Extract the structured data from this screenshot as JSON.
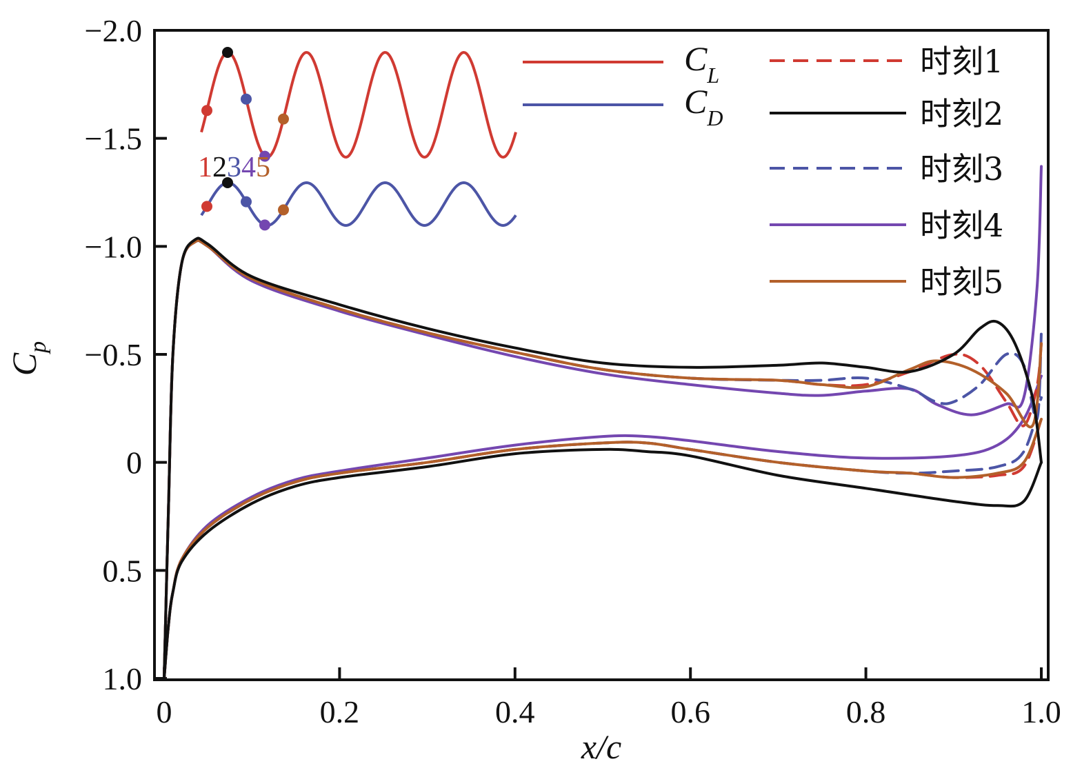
{
  "chart_data": {
    "type": "line",
    "xlabel": "x/c",
    "ylabel": "C_p",
    "ylabel_main": "C",
    "ylabel_sub": "p",
    "xlim": [
      0,
      1.0
    ],
    "ylim": [
      1.0,
      -2.0
    ],
    "y_inverted": true,
    "grid": false,
    "xticks": [
      0,
      0.2,
      0.4,
      0.6,
      0.8,
      1.0
    ],
    "xtick_labels": [
      "0",
      "0.2",
      "0.4",
      "0.6",
      "0.8",
      "1.0"
    ],
    "yticks": [
      -2.0,
      -1.5,
      -1.0,
      -0.5,
      0,
      0.5,
      1.0
    ],
    "ytick_labels": [
      "−2.0",
      "−1.5",
      "−1.0",
      "−0.5",
      "0",
      "0.5",
      "1.0"
    ],
    "legend": [
      {
        "label_main": "C",
        "label_sub": "L",
        "color": "#d03a32",
        "dash": "solid"
      },
      {
        "label_main": "C",
        "label_sub": "D",
        "color": "#4c55a6",
        "dash": "solid"
      },
      {
        "label": "时刻1",
        "color": "#d03a32",
        "dash": "dashed"
      },
      {
        "label": "时刻2",
        "color": "#111111",
        "dash": "solid"
      },
      {
        "label": "时刻3",
        "color": "#4c55a6",
        "dash": "dashed"
      },
      {
        "label": "时刻4",
        "color": "#7447b0",
        "dash": "solid"
      },
      {
        "label": "时刻5",
        "color": "#b3602a",
        "dash": "solid"
      }
    ],
    "legend_position": "top-right",
    "series": [
      {
        "name": "时刻1",
        "color": "#d03a32",
        "dash": "dashed",
        "upper": [
          [
            0.0,
            1.0
          ],
          [
            0.005,
            0.2
          ],
          [
            0.01,
            -0.5
          ],
          [
            0.02,
            -0.92
          ],
          [
            0.035,
            -1.02
          ],
          [
            0.05,
            -1.0
          ],
          [
            0.1,
            -0.85
          ],
          [
            0.2,
            -0.71
          ],
          [
            0.3,
            -0.6
          ],
          [
            0.4,
            -0.51
          ],
          [
            0.5,
            -0.43
          ],
          [
            0.6,
            -0.39
          ],
          [
            0.7,
            -0.38
          ],
          [
            0.75,
            -0.36
          ],
          [
            0.8,
            -0.36
          ],
          [
            0.85,
            -0.42
          ],
          [
            0.9,
            -0.5
          ],
          [
            0.93,
            -0.45
          ],
          [
            0.96,
            -0.28
          ],
          [
            0.98,
            -0.17
          ],
          [
            0.995,
            -0.35
          ],
          [
            1.0,
            -0.55
          ]
        ],
        "lower": [
          [
            0.0,
            1.0
          ],
          [
            0.005,
            0.75
          ],
          [
            0.01,
            0.6
          ],
          [
            0.02,
            0.45
          ],
          [
            0.05,
            0.3
          ],
          [
            0.1,
            0.17
          ],
          [
            0.15,
            0.09
          ],
          [
            0.2,
            0.05
          ],
          [
            0.3,
            0.0
          ],
          [
            0.4,
            -0.06
          ],
          [
            0.5,
            -0.09
          ],
          [
            0.55,
            -0.09
          ],
          [
            0.6,
            -0.06
          ],
          [
            0.7,
            0.0
          ],
          [
            0.8,
            0.04
          ],
          [
            0.85,
            0.05
          ],
          [
            0.9,
            0.07
          ],
          [
            0.95,
            0.06
          ],
          [
            0.98,
            0.02
          ],
          [
            1.0,
            -0.2
          ]
        ]
      },
      {
        "name": "时刻2",
        "color": "#111111",
        "dash": "solid",
        "upper": [
          [
            0.0,
            1.0
          ],
          [
            0.005,
            0.2
          ],
          [
            0.01,
            -0.5
          ],
          [
            0.02,
            -0.92
          ],
          [
            0.035,
            -1.03
          ],
          [
            0.05,
            -1.01
          ],
          [
            0.1,
            -0.86
          ],
          [
            0.2,
            -0.73
          ],
          [
            0.3,
            -0.62
          ],
          [
            0.4,
            -0.53
          ],
          [
            0.5,
            -0.46
          ],
          [
            0.6,
            -0.44
          ],
          [
            0.7,
            -0.45
          ],
          [
            0.75,
            -0.46
          ],
          [
            0.8,
            -0.44
          ],
          [
            0.85,
            -0.42
          ],
          [
            0.9,
            -0.5
          ],
          [
            0.93,
            -0.62
          ],
          [
            0.95,
            -0.65
          ],
          [
            0.97,
            -0.55
          ],
          [
            0.99,
            -0.3
          ],
          [
            1.0,
            0.0
          ]
        ],
        "lower": [
          [
            0.0,
            1.0
          ],
          [
            0.005,
            0.75
          ],
          [
            0.01,
            0.6
          ],
          [
            0.02,
            0.46
          ],
          [
            0.05,
            0.32
          ],
          [
            0.1,
            0.19
          ],
          [
            0.15,
            0.11
          ],
          [
            0.2,
            0.07
          ],
          [
            0.3,
            0.02
          ],
          [
            0.4,
            -0.04
          ],
          [
            0.5,
            -0.06
          ],
          [
            0.55,
            -0.05
          ],
          [
            0.6,
            -0.03
          ],
          [
            0.7,
            0.06
          ],
          [
            0.8,
            0.12
          ],
          [
            0.9,
            0.18
          ],
          [
            0.95,
            0.2
          ],
          [
            0.98,
            0.18
          ],
          [
            1.0,
            0.0
          ]
        ]
      },
      {
        "name": "时刻3",
        "color": "#4c55a6",
        "dash": "dashed",
        "upper": [
          [
            0.0,
            1.0
          ],
          [
            0.005,
            0.2
          ],
          [
            0.01,
            -0.5
          ],
          [
            0.02,
            -0.92
          ],
          [
            0.035,
            -1.02
          ],
          [
            0.05,
            -1.0
          ],
          [
            0.1,
            -0.85
          ],
          [
            0.2,
            -0.71
          ],
          [
            0.3,
            -0.6
          ],
          [
            0.4,
            -0.51
          ],
          [
            0.5,
            -0.43
          ],
          [
            0.6,
            -0.39
          ],
          [
            0.7,
            -0.38
          ],
          [
            0.75,
            -0.38
          ],
          [
            0.8,
            -0.39
          ],
          [
            0.85,
            -0.34
          ],
          [
            0.88,
            -0.28
          ],
          [
            0.9,
            -0.28
          ],
          [
            0.93,
            -0.36
          ],
          [
            0.96,
            -0.5
          ],
          [
            0.98,
            -0.45
          ],
          [
            0.995,
            -0.2
          ],
          [
            1.0,
            -0.6
          ]
        ],
        "lower": [
          [
            0.0,
            1.0
          ],
          [
            0.005,
            0.75
          ],
          [
            0.01,
            0.6
          ],
          [
            0.02,
            0.45
          ],
          [
            0.05,
            0.3
          ],
          [
            0.1,
            0.17
          ],
          [
            0.15,
            0.09
          ],
          [
            0.2,
            0.05
          ],
          [
            0.3,
            0.0
          ],
          [
            0.4,
            -0.06
          ],
          [
            0.5,
            -0.09
          ],
          [
            0.55,
            -0.09
          ],
          [
            0.6,
            -0.06
          ],
          [
            0.7,
            0.0
          ],
          [
            0.8,
            0.04
          ],
          [
            0.85,
            0.05
          ],
          [
            0.9,
            0.04
          ],
          [
            0.95,
            0.02
          ],
          [
            0.98,
            -0.05
          ],
          [
            1.0,
            -0.3
          ]
        ]
      },
      {
        "name": "时刻4",
        "color": "#7447b0",
        "dash": "solid",
        "upper": [
          [
            0.0,
            1.0
          ],
          [
            0.005,
            0.2
          ],
          [
            0.01,
            -0.5
          ],
          [
            0.02,
            -0.92
          ],
          [
            0.035,
            -1.02
          ],
          [
            0.05,
            -1.0
          ],
          [
            0.1,
            -0.84
          ],
          [
            0.2,
            -0.7
          ],
          [
            0.3,
            -0.59
          ],
          [
            0.4,
            -0.49
          ],
          [
            0.5,
            -0.41
          ],
          [
            0.6,
            -0.36
          ],
          [
            0.7,
            -0.32
          ],
          [
            0.75,
            -0.31
          ],
          [
            0.8,
            -0.33
          ],
          [
            0.85,
            -0.34
          ],
          [
            0.88,
            -0.27
          ],
          [
            0.92,
            -0.22
          ],
          [
            0.96,
            -0.27
          ],
          [
            0.98,
            -0.3
          ],
          [
            0.995,
            -0.8
          ],
          [
            1.0,
            -1.37
          ]
        ],
        "lower": [
          [
            0.0,
            1.0
          ],
          [
            0.005,
            0.75
          ],
          [
            0.01,
            0.6
          ],
          [
            0.02,
            0.45
          ],
          [
            0.05,
            0.29
          ],
          [
            0.1,
            0.16
          ],
          [
            0.15,
            0.08
          ],
          [
            0.2,
            0.04
          ],
          [
            0.3,
            -0.02
          ],
          [
            0.4,
            -0.08
          ],
          [
            0.5,
            -0.12
          ],
          [
            0.55,
            -0.12
          ],
          [
            0.6,
            -0.1
          ],
          [
            0.7,
            -0.05
          ],
          [
            0.8,
            -0.02
          ],
          [
            0.9,
            -0.03
          ],
          [
            0.95,
            -0.08
          ],
          [
            0.98,
            -0.2
          ],
          [
            1.0,
            -0.4
          ]
        ]
      },
      {
        "name": "时刻5",
        "color": "#b3602a",
        "dash": "solid",
        "upper": [
          [
            0.0,
            1.0
          ],
          [
            0.005,
            0.2
          ],
          [
            0.01,
            -0.5
          ],
          [
            0.02,
            -0.92
          ],
          [
            0.035,
            -1.02
          ],
          [
            0.05,
            -1.0
          ],
          [
            0.1,
            -0.85
          ],
          [
            0.2,
            -0.71
          ],
          [
            0.3,
            -0.6
          ],
          [
            0.4,
            -0.51
          ],
          [
            0.5,
            -0.43
          ],
          [
            0.6,
            -0.39
          ],
          [
            0.7,
            -0.38
          ],
          [
            0.75,
            -0.36
          ],
          [
            0.8,
            -0.35
          ],
          [
            0.85,
            -0.43
          ],
          [
            0.88,
            -0.47
          ],
          [
            0.92,
            -0.43
          ],
          [
            0.96,
            -0.32
          ],
          [
            0.99,
            -0.17
          ],
          [
            1.0,
            -0.55
          ]
        ],
        "lower": [
          [
            0.0,
            1.0
          ],
          [
            0.005,
            0.75
          ],
          [
            0.01,
            0.6
          ],
          [
            0.02,
            0.45
          ],
          [
            0.05,
            0.3
          ],
          [
            0.1,
            0.17
          ],
          [
            0.15,
            0.09
          ],
          [
            0.2,
            0.05
          ],
          [
            0.3,
            0.0
          ],
          [
            0.4,
            -0.06
          ],
          [
            0.5,
            -0.09
          ],
          [
            0.55,
            -0.09
          ],
          [
            0.6,
            -0.06
          ],
          [
            0.7,
            0.0
          ],
          [
            0.8,
            0.04
          ],
          [
            0.85,
            0.05
          ],
          [
            0.9,
            0.07
          ],
          [
            0.95,
            0.05
          ],
          [
            0.98,
            0.0
          ],
          [
            1.0,
            -0.2
          ]
        ]
      }
    ],
    "inset": {
      "point_numbers": [
        "1",
        "2",
        "3",
        "4",
        "5"
      ],
      "point_colors": [
        "#d03a32",
        "#111111",
        "#4c55a6",
        "#7447b0",
        "#b3602a"
      ],
      "cl_color": "#d03a32",
      "cd_color": "#4c55a6",
      "cycles": 4
    }
  }
}
